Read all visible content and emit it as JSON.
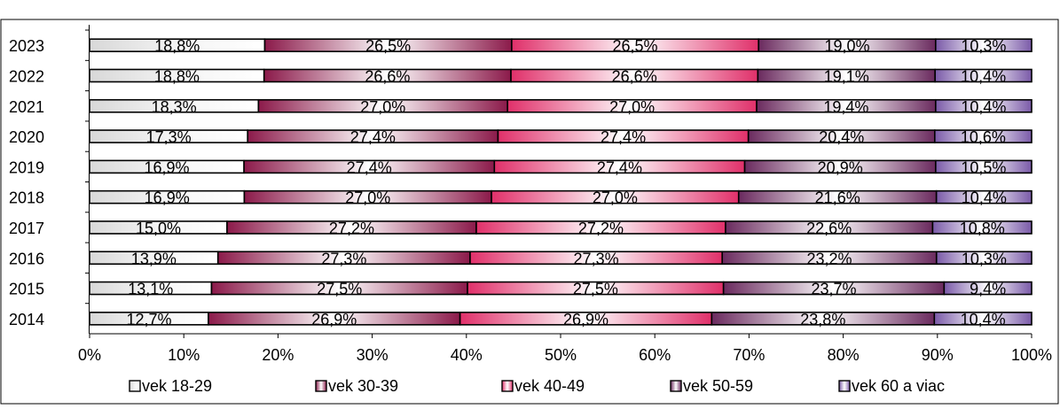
{
  "chart_data": {
    "type": "bar",
    "orientation": "horizontal",
    "stacked": true,
    "percent_stacked": true,
    "title": "",
    "xlabel": "",
    "ylabel": "",
    "xlim": [
      0,
      100
    ],
    "x_ticks": [
      "0%",
      "10%",
      "20%",
      "30%",
      "40%",
      "50%",
      "60%",
      "70%",
      "80%",
      "90%",
      "100%"
    ],
    "categories": [
      "2023",
      "2022",
      "2021",
      "2020",
      "2019",
      "2018",
      "2017",
      "2016",
      "2015",
      "2014"
    ],
    "series": [
      {
        "name": "vek 18-29",
        "color": "#e8e8e8",
        "values": [
          18.8,
          18.8,
          18.3,
          17.3,
          16.9,
          16.9,
          15.0,
          13.9,
          13.1,
          12.7
        ],
        "labels": [
          "18,8%",
          "18,8%",
          "18,3%",
          "17,3%",
          "16,9%",
          "16,9%",
          "15,0%",
          "13,9%",
          "13,1%",
          "12,7%"
        ]
      },
      {
        "name": "vek 30-39",
        "color": "#8b1a4a",
        "values": [
          26.5,
          26.6,
          27.0,
          27.4,
          27.4,
          27.0,
          27.2,
          27.3,
          27.5,
          26.9
        ],
        "labels": [
          "26,5%",
          "26,6%",
          "27,0%",
          "27,4%",
          "27,4%",
          "27,0%",
          "27,2%",
          "27,3%",
          "27,5%",
          "26,9%"
        ]
      },
      {
        "name": "vek 40-49",
        "color": "#e0306a",
        "values": [
          26.5,
          26.6,
          27.0,
          27.4,
          27.4,
          27.0,
          27.2,
          27.3,
          27.5,
          26.9
        ],
        "labels": [
          "26,5%",
          "26,6%",
          "27,0%",
          "27,4%",
          "27,4%",
          "27,0%",
          "27,2%",
          "27,3%",
          "27,5%",
          "26,9%"
        ]
      },
      {
        "name": "vek 50-59",
        "color": "#6a2a5e",
        "values": [
          19.0,
          19.1,
          19.4,
          20.4,
          20.9,
          21.6,
          22.6,
          23.2,
          23.7,
          23.8
        ],
        "labels": [
          "19,0%",
          "19,1%",
          "19,4%",
          "20,4%",
          "20,9%",
          "21,6%",
          "22,6%",
          "23,2%",
          "23,7%",
          "23,8%"
        ]
      },
      {
        "name": "vek 60 a viac",
        "color": "#7a5aa8",
        "values": [
          10.3,
          10.4,
          10.4,
          10.6,
          10.5,
          10.4,
          10.8,
          10.3,
          9.4,
          10.4
        ],
        "labels": [
          "10,3%",
          "10,4%",
          "10,4%",
          "10,6%",
          "10,5%",
          "10,4%",
          "10,8%",
          "10,3%",
          "9,4%",
          "10,4%"
        ]
      }
    ],
    "legend_position": "bottom",
    "grid": false
  },
  "header": {
    "partial_title": ""
  }
}
